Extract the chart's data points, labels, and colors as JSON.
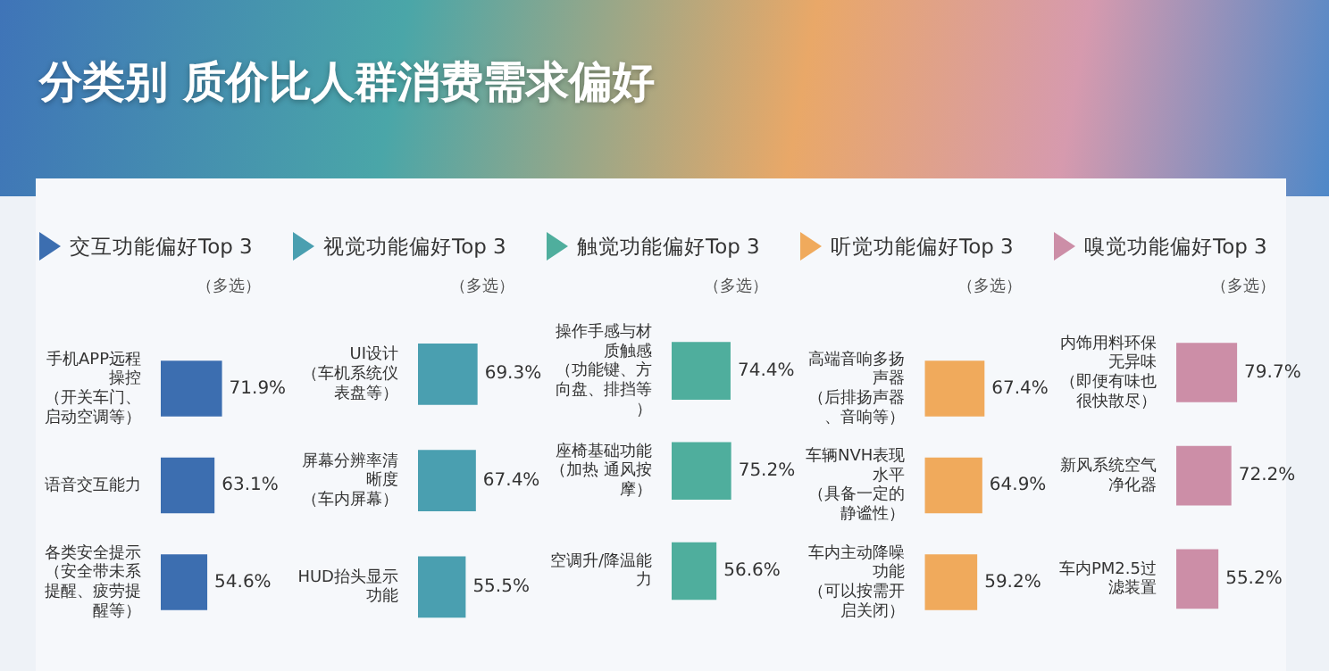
{
  "chart_data": [
    {
      "type": "bar",
      "orientation": "horizontal",
      "title": "交互功能偏好Top 3",
      "subtitle": "（多选）",
      "annotations": [
        "分类别 质价比人群消费需求偏好"
      ],
      "categories": [
        "手机APP远程操控（开关车门、启动空调等）",
        "语音交互能力",
        "各类安全提示（安全带未系提醒、疲劳提醒等）"
      ],
      "values": [
        71.9,
        63.1,
        54.6
      ],
      "value_labels": [
        "71.9%",
        "63.1%",
        "54.6%"
      ],
      "color": "#3c6eb0",
      "legend": false
    },
    {
      "type": "bar",
      "orientation": "horizontal",
      "title": "视觉功能偏好Top 3",
      "subtitle": "（多选）",
      "categories": [
        "UI设计（车机系统仪表盘等）",
        "屏幕分辨率清晰度（车内屏幕）",
        "HUD抬头显示功能"
      ],
      "values": [
        69.3,
        67.4,
        55.5
      ],
      "value_labels": [
        "69.3%",
        "67.4%",
        "55.5%"
      ],
      "color": "#4a9fb0",
      "legend": false
    },
    {
      "type": "bar",
      "orientation": "horizontal",
      "title": "触觉功能偏好Top 3",
      "subtitle": "（多选）",
      "categories": [
        "操作手感与材质触感（功能键、方向盘、排挡等）",
        "座椅基础功能（加热 通风按摩）",
        "空调升/降温能力"
      ],
      "values": [
        74.4,
        75.2,
        56.6
      ],
      "value_labels": [
        "74.4%",
        "75.2%",
        "56.6%"
      ],
      "color": "#4fae9d",
      "legend": false
    },
    {
      "type": "bar",
      "orientation": "horizontal",
      "title": "听觉功能偏好Top 3",
      "subtitle": "（多选）",
      "categories": [
        "高端音响多扬声器（后排扬声器、音响等）",
        "车辆NVH表现水平（具备一定的静谧性）",
        "车内主动降噪功能（可以按需开启关闭）"
      ],
      "values": [
        67.4,
        64.9,
        59.2
      ],
      "value_labels": [
        "67.4%",
        "64.9%",
        "59.2%"
      ],
      "color": "#f0aa5c",
      "legend": false
    },
    {
      "type": "bar",
      "orientation": "horizontal",
      "title": "嗅觉功能偏好Top 3",
      "subtitle": "（多选）",
      "categories": [
        "内饰用料环保无异味（即便有味也很快散尽）",
        "新风系统空气净化器",
        "车内PM2.5过滤装置"
      ],
      "values": [
        79.7,
        72.2,
        55.2
      ],
      "value_labels": [
        "79.7%",
        "72.2%",
        "55.2%"
      ],
      "color": "#cc8ea7",
      "legend": false
    }
  ]
}
